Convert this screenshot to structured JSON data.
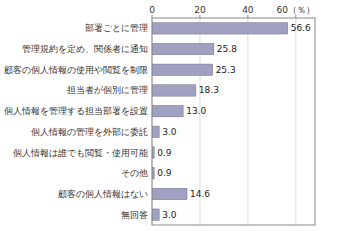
{
  "chart_data": {
    "type": "bar",
    "orientation": "horizontal",
    "categories": [
      "無回答",
      "顧客の個人情報はない",
      "その他",
      "個人情報は誰でも閲覧・使用可能",
      "個人情報の管理を外部に委託",
      "個人情報を管理する担当部署を設置",
      "担当者が個別に管理",
      "顧客の個人情報の使用や閲覧を制限",
      "管理規約を定め、関係者に通知",
      "部署ごとに管理"
    ],
    "values": [
      3.0,
      14.6,
      0.9,
      0.9,
      3.0,
      13.0,
      18.3,
      25.3,
      25.8,
      56.6
    ],
    "value_labels": [
      "3.0",
      "14.6",
      "0.9",
      "0.9",
      "3.0",
      "13.0",
      "18.3",
      "25.3",
      "25.8",
      "56.6"
    ],
    "data_labels": true,
    "color": "#a0a0c0",
    "xlim": [
      0,
      68
    ],
    "xticks": [
      0,
      20,
      40,
      {
        "value": 60,
        "label": "60（％）"
      }
    ],
    "grid": true
  }
}
